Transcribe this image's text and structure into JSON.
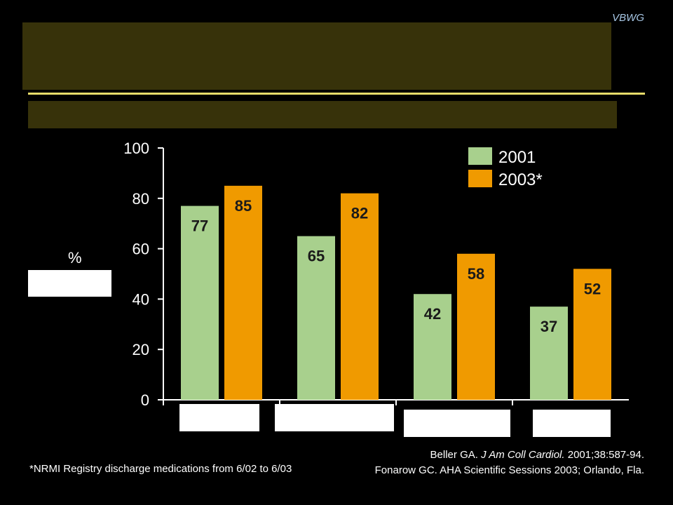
{
  "brand": "VBWG",
  "chart_data": {
    "type": "bar",
    "categories": [
      "",
      "",
      "",
      ""
    ],
    "series": [
      {
        "name": "2001",
        "values": [
          77,
          65,
          42,
          37
        ],
        "color": "#a8d08d"
      },
      {
        "name": "2003*",
        "values": [
          85,
          82,
          58,
          52
        ],
        "color": "#f09a00"
      }
    ],
    "ylabel": "%",
    "ylim": [
      0,
      100
    ],
    "yticks": [
      "0",
      "20",
      "40",
      "60",
      "80",
      "100"
    ],
    "legend_position": "top-right",
    "grid": false
  },
  "footnote": "*NRMI Registry discharge medications from 6/02 to 6/03",
  "references": {
    "ref1_author": "Beller GA. ",
    "ref1_journal": "J Am Coll Cardiol.",
    "ref1_rest": " 2001;38:587-94.",
    "ref2": "Fonarow GC. AHA Scientific Sessions 2003; Orlando, Fla."
  }
}
